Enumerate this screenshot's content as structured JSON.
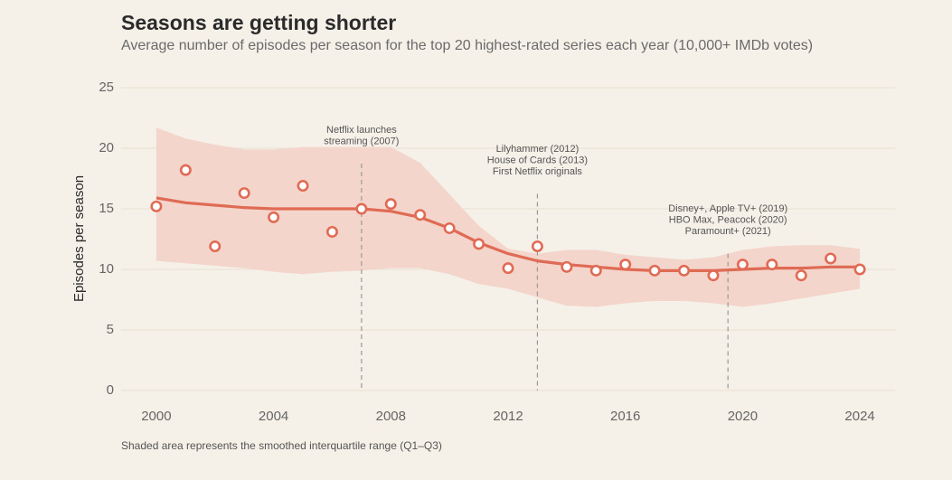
{
  "chart_data": {
    "type": "line",
    "title": "Seasons are getting shorter",
    "subtitle": "Average number of episodes per season for the top 20 highest-rated series each year (10,000+ IMDb votes)",
    "y_label": "Episodes per season",
    "caption": "Shaded area represents the smoothed interquartile range (Q1–Q3)",
    "x": [
      2000,
      2001,
      2002,
      2003,
      2004,
      2005,
      2006,
      2007,
      2008,
      2009,
      2010,
      2011,
      2012,
      2013,
      2014,
      2015,
      2016,
      2017,
      2018,
      2019,
      2020,
      2021,
      2022,
      2023,
      2024
    ],
    "values": [
      15.2,
      18.2,
      11.9,
      16.3,
      14.3,
      16.9,
      13.1,
      15.0,
      15.4,
      14.5,
      13.4,
      12.1,
      10.1,
      11.9,
      10.2,
      9.9,
      10.4,
      9.9,
      9.9,
      9.5,
      10.4,
      10.4,
      9.5,
      10.9,
      10.0
    ],
    "smooth": [
      15.9,
      15.5,
      15.3,
      15.1,
      15.0,
      15.0,
      15.0,
      15.0,
      14.8,
      14.3,
      13.4,
      12.2,
      11.3,
      10.7,
      10.4,
      10.2,
      10.0,
      9.9,
      9.9,
      9.9,
      10.0,
      10.1,
      10.1,
      10.2,
      10.2
    ],
    "band_upper": [
      21.7,
      20.8,
      20.3,
      19.9,
      19.9,
      20.1,
      20.1,
      20.1,
      20.1,
      18.8,
      16.2,
      13.6,
      11.7,
      11.3,
      11.6,
      11.6,
      11.2,
      11.0,
      10.8,
      11.0,
      11.6,
      11.9,
      12.0,
      12.0,
      11.7
    ],
    "band_lower": [
      10.7,
      10.5,
      10.3,
      10.1,
      9.8,
      9.6,
      9.8,
      9.9,
      10.1,
      10.1,
      9.6,
      8.8,
      8.4,
      7.7,
      7.0,
      6.9,
      7.2,
      7.4,
      7.4,
      7.2,
      6.9,
      7.2,
      7.6,
      8.0,
      8.4
    ],
    "color": "#e06b55",
    "band_color": "#f4d5cc",
    "xlim": [
      1998.8,
      2025.2
    ],
    "ylim": [
      -1,
      26
    ],
    "xticks": [
      2000,
      2004,
      2008,
      2012,
      2016,
      2020,
      2024
    ],
    "yticks": [
      0,
      5,
      10,
      15,
      20,
      25
    ],
    "grid": true,
    "annotations": [
      {
        "x": 2007,
        "lines": [
          "Netflix launches",
          "streaming (2007)"
        ]
      },
      {
        "x": 2013,
        "lines": [
          "Lilyhammer (2012)",
          "House of Cards (2013)",
          "First Netflix originals"
        ]
      },
      {
        "x": 2019.5,
        "lines": [
          "Disney+, Apple TV+ (2019)",
          "HBO Max, Peacock (2020)",
          "Paramount+ (2021)"
        ]
      }
    ]
  }
}
